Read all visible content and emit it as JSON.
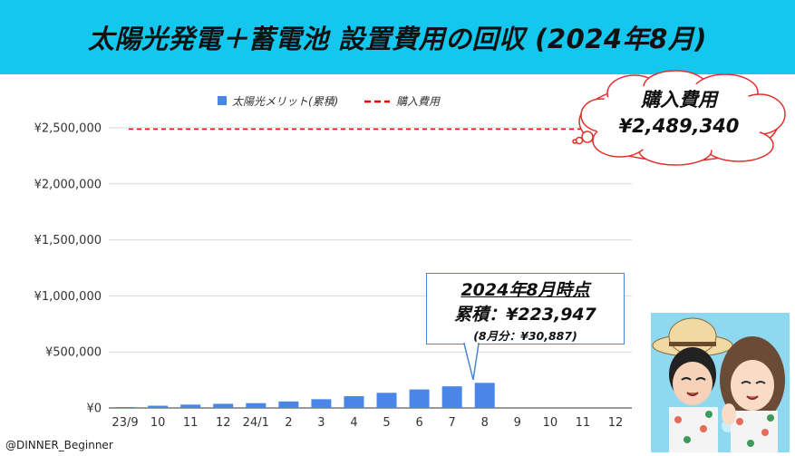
{
  "header": {
    "title": "太陽光発電＋蓄電池 設置費用の回収 (2024年8月)"
  },
  "colors": {
    "header_bg": "#13c7ee",
    "bar": "#4a86e8",
    "purchase_line": "#ff0000",
    "callout_border": "#4a86d6"
  },
  "callout": {
    "line1": "2024年8月時点",
    "line2": "累積：¥223,947",
    "line3": "(8月分：¥30,887)"
  },
  "cloud": {
    "line1": "購入費用",
    "line2": "¥2,489,340"
  },
  "credit": "@DINNER_Beginner",
  "chart_data": {
    "type": "bar",
    "categories": [
      "23/9",
      "10",
      "11",
      "12",
      "24/1",
      "2",
      "3",
      "4",
      "5",
      "6",
      "7",
      "8",
      "9",
      "10",
      "11",
      "12"
    ],
    "series": [
      {
        "name": "太陽光メリット(累積)",
        "type": "bar",
        "values": [
          8000,
          20000,
          30000,
          37000,
          43000,
          58000,
          78000,
          105000,
          135000,
          165000,
          193060,
          223947,
          null,
          null,
          null,
          null
        ]
      },
      {
        "name": "購入費用",
        "type": "line",
        "style": "dashed",
        "value": 2489340
      }
    ],
    "ylim": [
      0,
      2500000
    ],
    "yticks": [
      0,
      500000,
      1000000,
      1500000,
      2000000,
      2500000
    ],
    "ytick_labels": [
      "¥0",
      "¥500,000",
      "¥1,000,000",
      "¥1,500,000",
      "¥2,000,000",
      "¥2,500,000"
    ],
    "grid": true,
    "legend": "top"
  }
}
